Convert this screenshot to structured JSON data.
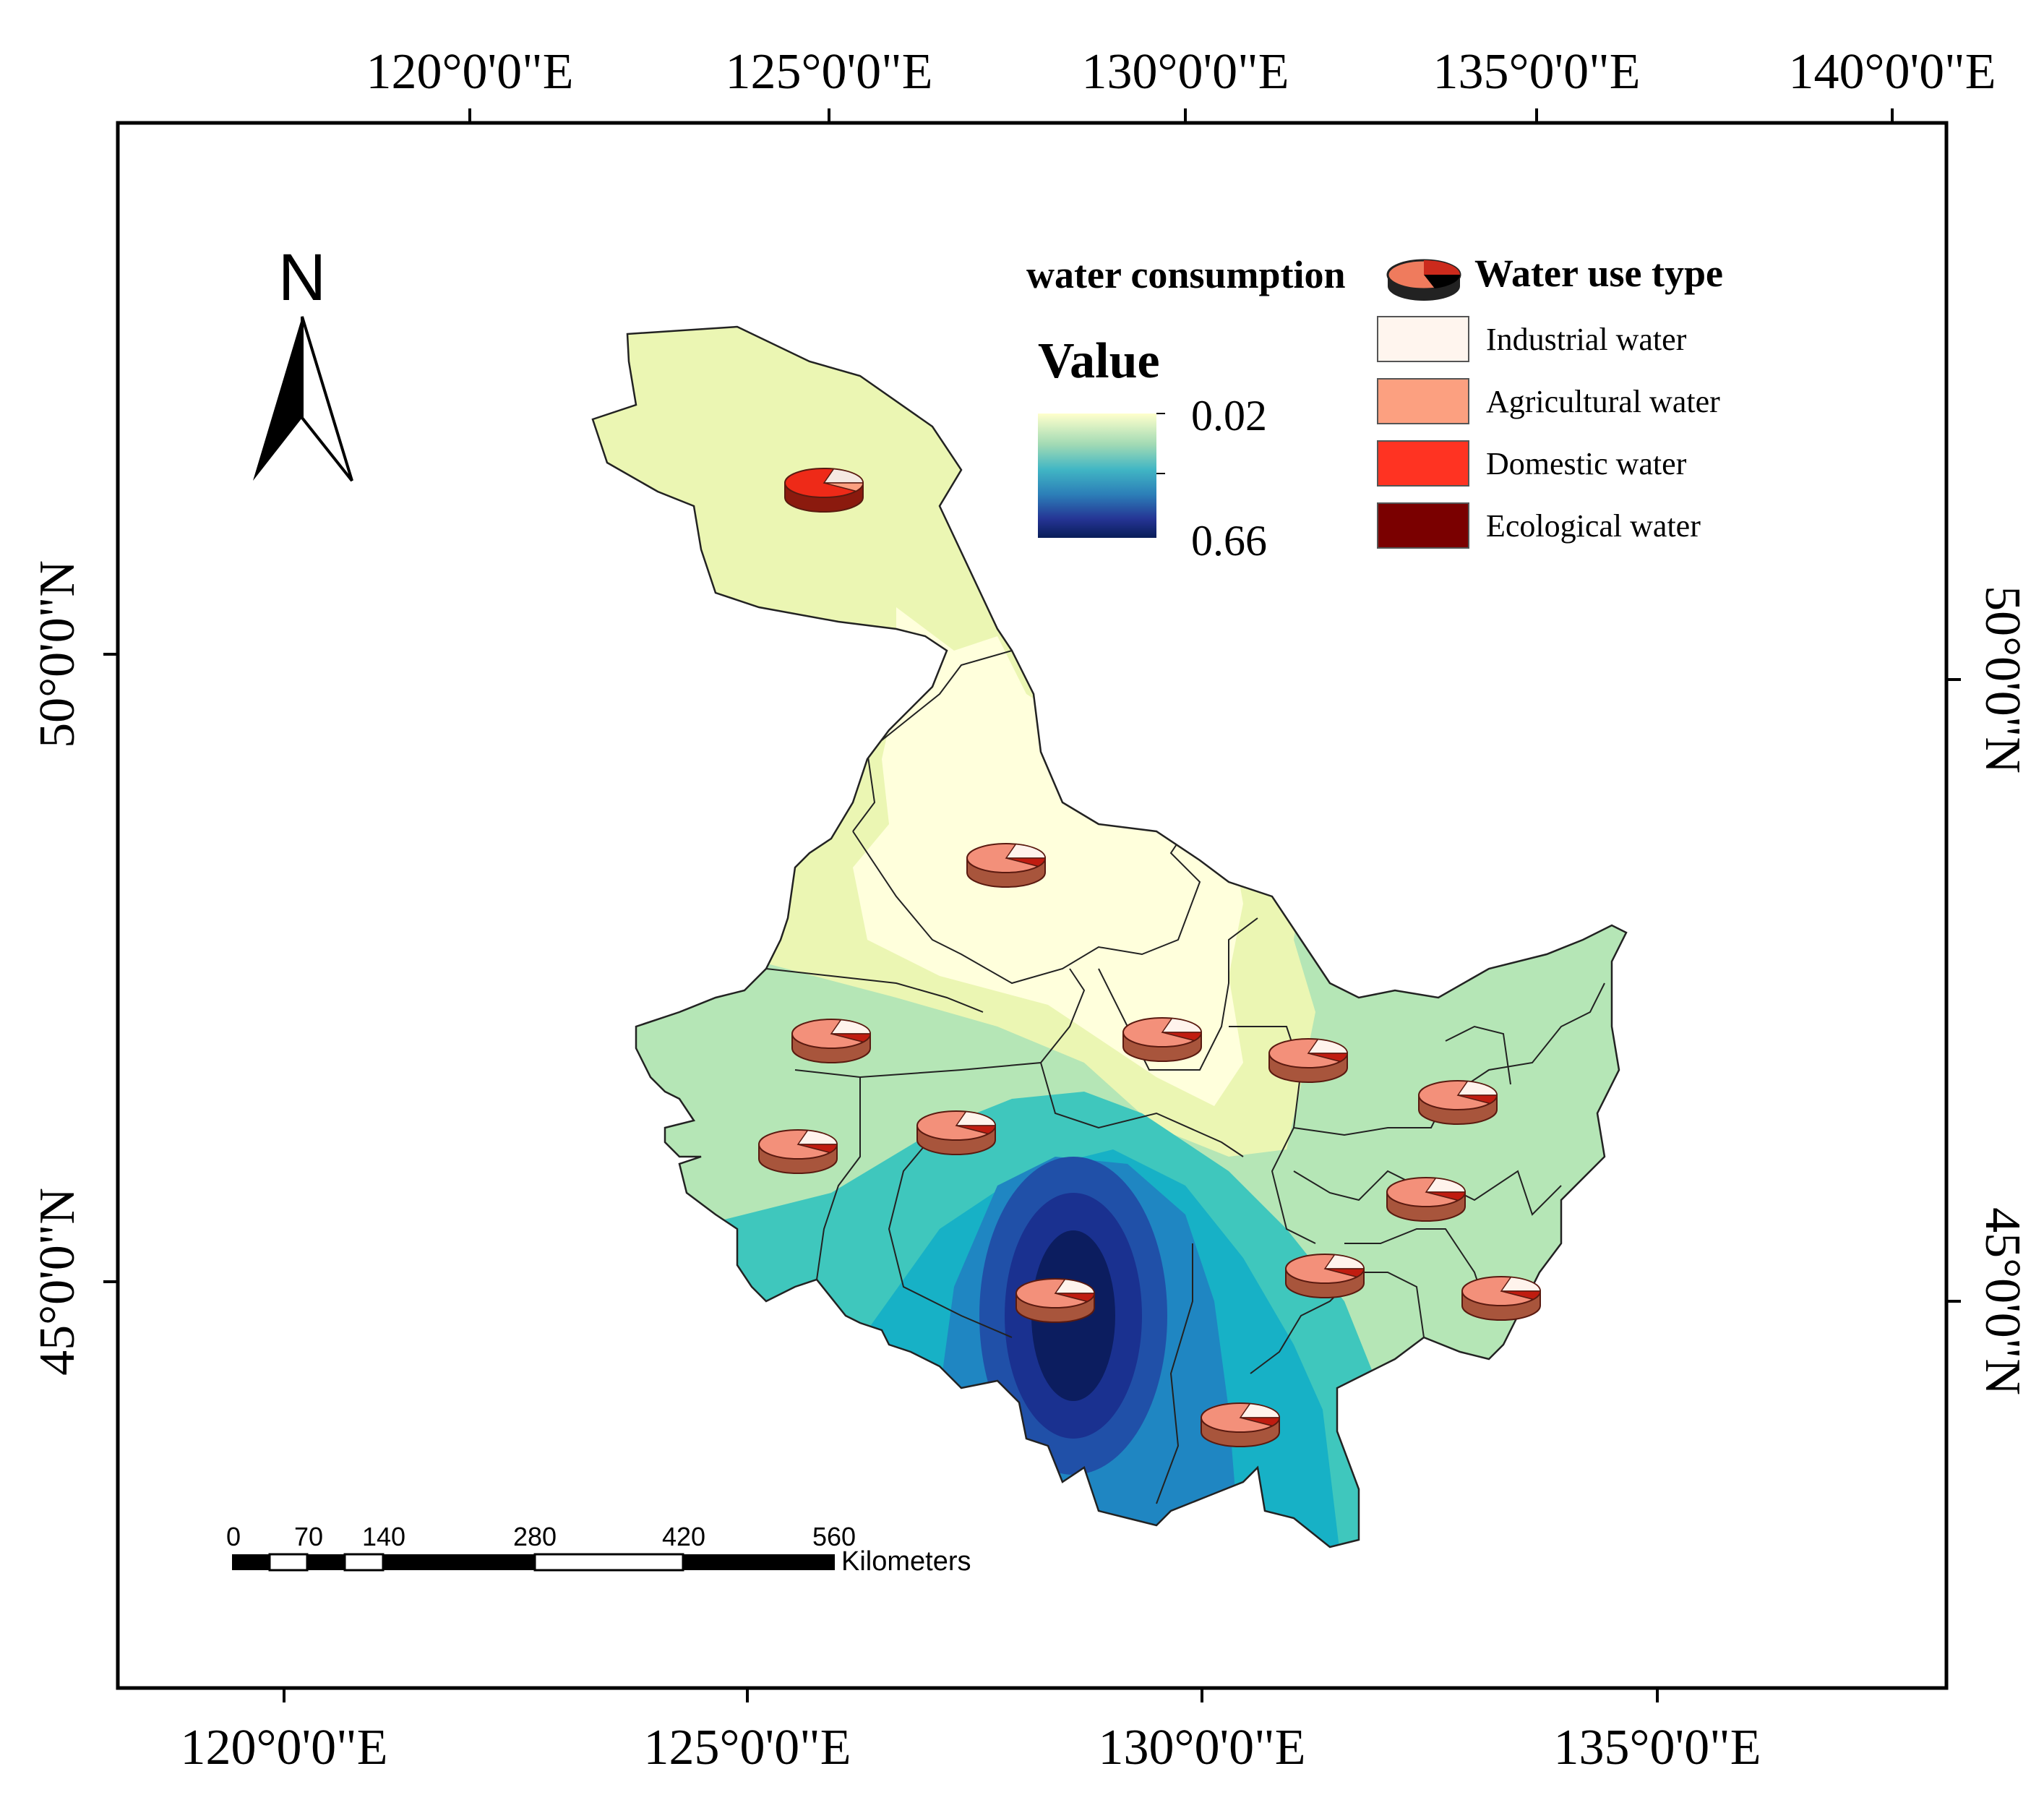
{
  "map": {
    "top_ticks": [
      "120°0'0\"E",
      "125°0'0\"E",
      "130°0'0\"E",
      "135°0'0\"E",
      "140°0'0\"E"
    ],
    "bottom_ticks": [
      "120°0'0\"E",
      "125°0'0\"E",
      "130°0'0\"E",
      "135°0'0\"E"
    ],
    "left_ticks": [
      "50°0'0\"N",
      "45°0'0\"N"
    ],
    "right_ticks": [
      "50°0'0\"N",
      "45°0'0\"N"
    ],
    "north_label": "N"
  },
  "legend": {
    "consumption_title": "water consumption",
    "value_title": "Value",
    "value_high": "0.02",
    "value_low": "0.66",
    "gradient_colors": [
      "#ffffcc",
      "#a1dab4",
      "#41b6c4",
      "#2c7fb8",
      "#253494",
      "#081d58"
    ],
    "type_title": "Water use type",
    "types": [
      {
        "label": "Industrial water",
        "color": "#fff5ee"
      },
      {
        "label": "Agricultural water",
        "color": "#fca080"
      },
      {
        "label": "Domestic water",
        "color": "#ff3322"
      },
      {
        "label": "Ecological water",
        "color": "#7a0000"
      }
    ]
  },
  "scale_bar": {
    "ticks": [
      "0",
      "70",
      "140",
      "280",
      "420",
      "560"
    ],
    "unit": "Kilometers"
  }
}
